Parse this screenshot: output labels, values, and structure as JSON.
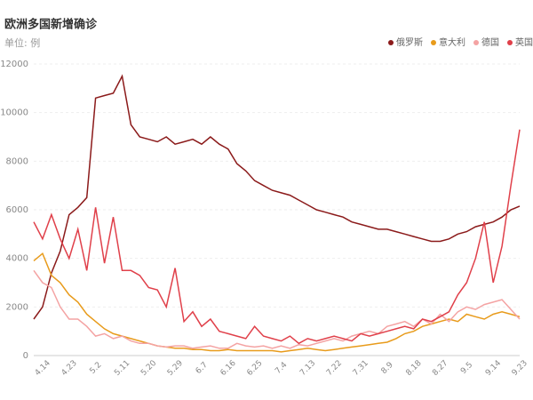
{
  "chart_data": {
    "type": "line",
    "title": "欧洲多国新增确诊",
    "subtitle": "单位: 例",
    "categories": [
      null,
      "4.14",
      null,
      null,
      "4.23",
      null,
      null,
      "5.2",
      null,
      null,
      "5.11",
      null,
      null,
      "5.20",
      null,
      null,
      "5.29",
      null,
      null,
      "6.7",
      null,
      null,
      "6.16",
      null,
      null,
      "6.25",
      null,
      null,
      "7.4",
      null,
      null,
      "7.13",
      null,
      null,
      "7.22",
      null,
      null,
      "7.31",
      null,
      null,
      "8.9",
      null,
      null,
      "8.18",
      null,
      null,
      "8.27",
      null,
      null,
      "9.5",
      null,
      null,
      "9.14",
      null,
      null,
      "9.23"
    ],
    "series": [
      {
        "name": "俄罗斯",
        "color": "#8b1a1a",
        "values": [
          1500,
          2000,
          3400,
          4300,
          5800,
          6100,
          6500,
          10600,
          10700,
          10800,
          11500,
          9500,
          9000,
          8900,
          8800,
          9000,
          8700,
          8800,
          8900,
          8700,
          9000,
          8700,
          8500,
          7900,
          7600,
          7200,
          7000,
          6800,
          6700,
          6600,
          6400,
          6200,
          6000,
          5900,
          5800,
          5700,
          5500,
          5400,
          5300,
          5200,
          5200,
          5100,
          5000,
          4900,
          4800,
          4700,
          4700,
          4800,
          5000,
          5100,
          5300,
          5400,
          5500,
          5700,
          6000,
          6150
        ]
      },
      {
        "name": "意大利",
        "color": "#e89b1b",
        "values": [
          3900,
          4200,
          3300,
          3000,
          2500,
          2200,
          1700,
          1400,
          1100,
          900,
          800,
          700,
          600,
          500,
          400,
          350,
          300,
          300,
          250,
          250,
          200,
          200,
          250,
          200,
          200,
          200,
          200,
          200,
          150,
          200,
          250,
          300,
          250,
          200,
          250,
          300,
          350,
          400,
          450,
          500,
          550,
          700,
          900,
          1000,
          1200,
          1300,
          1400,
          1500,
          1400,
          1700,
          1600,
          1500,
          1700,
          1800,
          1700,
          1600
        ]
      },
      {
        "name": "德国",
        "color": "#f4a3a3",
        "values": [
          3500,
          3000,
          2800,
          2000,
          1500,
          1500,
          1200,
          800,
          900,
          700,
          800,
          600,
          500,
          500,
          400,
          350,
          400,
          400,
          300,
          350,
          400,
          300,
          300,
          500,
          400,
          350,
          400,
          300,
          400,
          300,
          450,
          400,
          500,
          600,
          700,
          600,
          800,
          900,
          1000,
          900,
          1200,
          1300,
          1400,
          1200,
          1500,
          1300,
          1700,
          1400,
          1800,
          2000,
          1900,
          2100,
          2200,
          2300,
          1900,
          1500
        ]
      },
      {
        "name": "英国",
        "color": "#e0404a",
        "values": [
          5500,
          4800,
          5800,
          4800,
          4000,
          5200,
          3500,
          6100,
          3800,
          5700,
          3500,
          3500,
          3300,
          2800,
          2700,
          2000,
          3600,
          1400,
          1800,
          1200,
          1500,
          1000,
          900,
          800,
          700,
          1200,
          800,
          700,
          600,
          800,
          500,
          700,
          600,
          700,
          800,
          700,
          600,
          900,
          800,
          900,
          1000,
          1100,
          1200,
          1100,
          1500,
          1400,
          1600,
          1800,
          2500,
          3000,
          4000,
          5500,
          3000,
          4500,
          7000,
          9300
        ]
      }
    ],
    "ylim": [
      0,
      12000
    ],
    "yticks": [
      0,
      2000,
      4000,
      6000,
      8000,
      10000,
      12000
    ],
    "grid": true
  }
}
